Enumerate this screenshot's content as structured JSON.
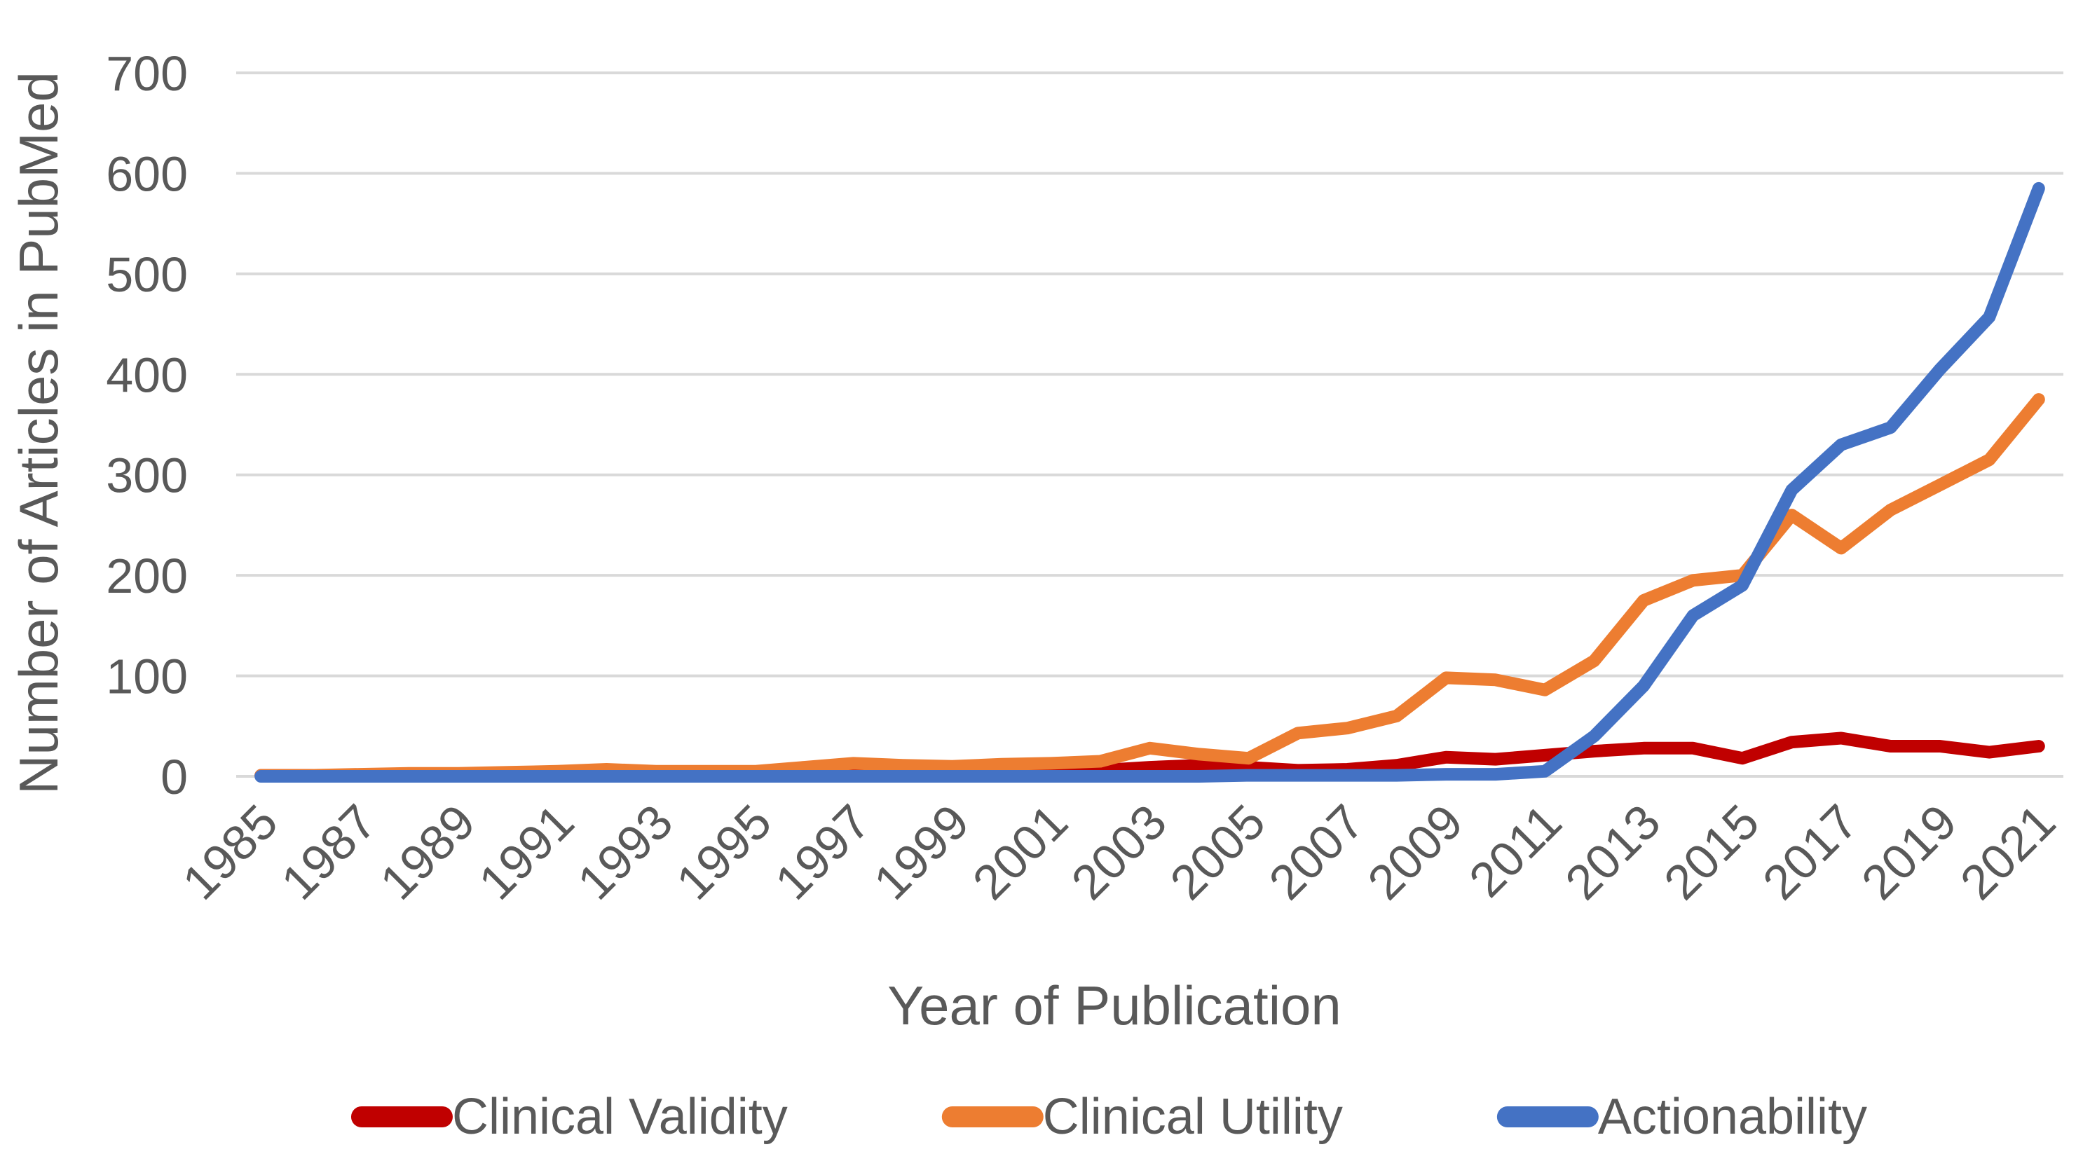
{
  "chart_data": {
    "type": "line",
    "title": "",
    "xlabel": "Year of Publication",
    "ylabel": "Number of Articles in PubMed",
    "x": [
      1985,
      1986,
      1987,
      1988,
      1989,
      1990,
      1991,
      1992,
      1993,
      1994,
      1995,
      1996,
      1997,
      1998,
      1999,
      2000,
      2001,
      2002,
      2003,
      2004,
      2005,
      2006,
      2007,
      2008,
      2009,
      2010,
      2011,
      2012,
      2013,
      2014,
      2015,
      2016,
      2017,
      2018,
      2019,
      2020,
      2021
    ],
    "xtick_labels": [
      "1985",
      "1987",
      "1989",
      "1991",
      "1993",
      "1995",
      "1997",
      "1999",
      "2001",
      "2003",
      "2005",
      "2007",
      "2009",
      "2011",
      "2013",
      "2015",
      "2017",
      "2019",
      "2021"
    ],
    "ytick_values": [
      0,
      100,
      200,
      300,
      400,
      500,
      600,
      700
    ],
    "ylim": [
      0,
      700
    ],
    "grid": "horizontal",
    "legend_position": "bottom",
    "series": [
      {
        "name": "Clinical Validity",
        "color": "#C00000",
        "values": [
          1,
          1,
          1,
          2,
          2,
          2,
          3,
          4,
          4,
          3,
          3,
          4,
          5,
          4,
          5,
          6,
          7,
          6,
          9,
          11,
          9,
          6,
          7,
          11,
          19,
          17,
          21,
          25,
          28,
          28,
          18,
          34,
          38,
          30,
          30,
          24,
          30
        ]
      },
      {
        "name": "Clinical Utility",
        "color": "#ED7D31",
        "values": [
          1,
          1,
          2,
          3,
          3,
          4,
          5,
          7,
          5,
          5,
          5,
          9,
          13,
          11,
          10,
          12,
          13,
          15,
          28,
          22,
          18,
          43,
          48,
          60,
          98,
          96,
          86,
          115,
          175,
          195,
          200,
          260,
          227,
          265,
          290,
          315,
          375
        ]
      },
      {
        "name": "Actionability",
        "color": "#4472C4",
        "values": [
          0,
          0,
          0,
          0,
          0,
          0,
          0,
          0,
          0,
          0,
          0,
          0,
          0,
          0,
          0,
          0,
          0,
          0,
          0,
          0,
          1,
          1,
          1,
          1,
          2,
          2,
          5,
          40,
          90,
          160,
          190,
          285,
          330,
          347,
          405,
          457,
          585
        ]
      }
    ],
    "colors": {
      "gridline": "#D9D9D9",
      "text": "#595959"
    }
  }
}
